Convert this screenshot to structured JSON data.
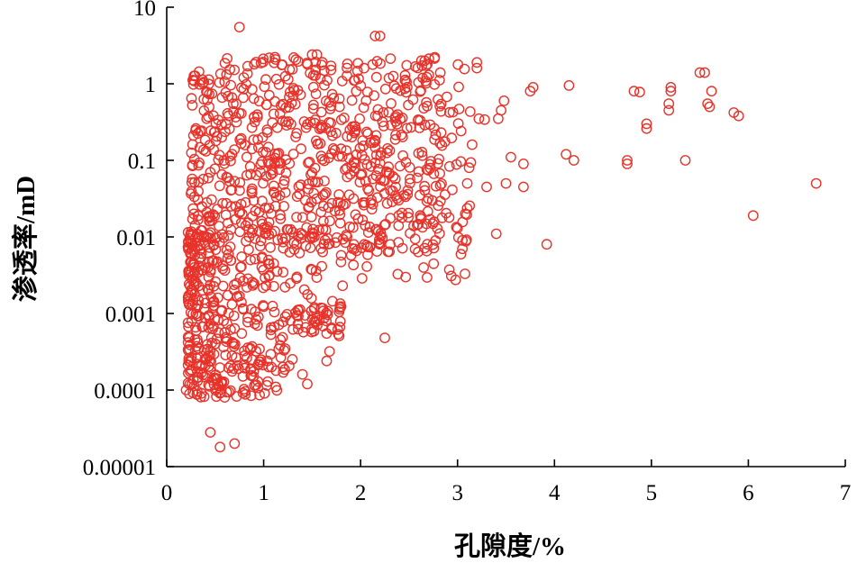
{
  "chart_data": {
    "type": "scatter",
    "title": "",
    "xlabel": "孔隙度/%",
    "ylabel": "渗透率/mD",
    "xlim": [
      0,
      7
    ],
    "ylim": [
      1e-05,
      10
    ],
    "yscale": "log",
    "grid": false,
    "legend": "none",
    "x_ticks": [
      "0",
      "1",
      "2",
      "3",
      "4",
      "5",
      "6",
      "7"
    ],
    "y_ticks": [
      "0.00001",
      "0.0001",
      "0.001",
      "0.01",
      "0.1",
      "1",
      "10"
    ],
    "marker_color": "#e8332a",
    "marker": "open-circle",
    "outliers": [
      {
        "x": 6.7,
        "y": 0.05
      },
      {
        "x": 6.05,
        "y": 0.019
      },
      {
        "x": 5.9,
        "y": 0.38
      },
      {
        "x": 5.85,
        "y": 0.42
      },
      {
        "x": 5.62,
        "y": 0.8
      },
      {
        "x": 5.6,
        "y": 0.5
      },
      {
        "x": 5.58,
        "y": 0.55
      },
      {
        "x": 5.55,
        "y": 1.4
      },
      {
        "x": 5.5,
        "y": 1.4
      },
      {
        "x": 5.35,
        "y": 0.1
      },
      {
        "x": 5.2,
        "y": 0.9
      },
      {
        "x": 5.2,
        "y": 0.8
      },
      {
        "x": 5.18,
        "y": 0.55
      },
      {
        "x": 5.18,
        "y": 0.45
      },
      {
        "x": 4.95,
        "y": 0.3
      },
      {
        "x": 4.95,
        "y": 0.26
      },
      {
        "x": 4.88,
        "y": 0.78
      },
      {
        "x": 4.82,
        "y": 0.8
      },
      {
        "x": 4.75,
        "y": 0.1
      },
      {
        "x": 4.75,
        "y": 0.09
      },
      {
        "x": 4.2,
        "y": 0.1
      },
      {
        "x": 4.15,
        "y": 0.95
      },
      {
        "x": 4.12,
        "y": 0.12
      },
      {
        "x": 3.92,
        "y": 0.008
      },
      {
        "x": 3.78,
        "y": 0.9
      },
      {
        "x": 3.75,
        "y": 0.8
      },
      {
        "x": 3.68,
        "y": 0.09
      },
      {
        "x": 3.68,
        "y": 0.045
      },
      {
        "x": 3.55,
        "y": 0.11
      },
      {
        "x": 3.5,
        "y": 0.05
      },
      {
        "x": 3.48,
        "y": 0.6
      },
      {
        "x": 3.45,
        "y": 0.45
      },
      {
        "x": 3.42,
        "y": 0.35
      },
      {
        "x": 3.4,
        "y": 0.011
      },
      {
        "x": 3.3,
        "y": 0.045
      },
      {
        "x": 3.28,
        "y": 0.34
      },
      {
        "x": 3.22,
        "y": 0.35
      },
      {
        "x": 3.2,
        "y": 1.9
      },
      {
        "x": 3.2,
        "y": 1.6
      },
      {
        "x": 3.15,
        "y": 0.16
      },
      {
        "x": 3.12,
        "y": 0.08
      },
      {
        "x": 3.1,
        "y": 0.05
      },
      {
        "x": 3.05,
        "y": 0.007
      },
      {
        "x": 3.05,
        "y": 0.009
      },
      {
        "x": 3.0,
        "y": 0.013
      },
      {
        "x": 2.25,
        "y": 0.00048
      },
      {
        "x": 1.45,
        "y": 0.00012
      },
      {
        "x": 1.4,
        "y": 0.00016
      },
      {
        "x": 1.68,
        "y": 0.00032
      },
      {
        "x": 1.65,
        "y": 0.00024
      },
      {
        "x": 0.55,
        "y": 1.8e-05
      },
      {
        "x": 0.7,
        "y": 2e-05
      },
      {
        "x": 0.45,
        "y": 2.8e-05
      },
      {
        "x": 0.2,
        "y": 0.0001
      },
      {
        "x": 0.75,
        "y": 5.5
      },
      {
        "x": 2.15,
        "y": 4.2
      },
      {
        "x": 2.2,
        "y": 4.2
      },
      {
        "x": 1.55,
        "y": 2.4
      },
      {
        "x": 1.5,
        "y": 2.4
      }
    ],
    "cluster": {
      "count": 1100,
      "x_range": [
        0.15,
        3.0
      ],
      "y_range": [
        3e-05,
        4
      ]
    }
  }
}
